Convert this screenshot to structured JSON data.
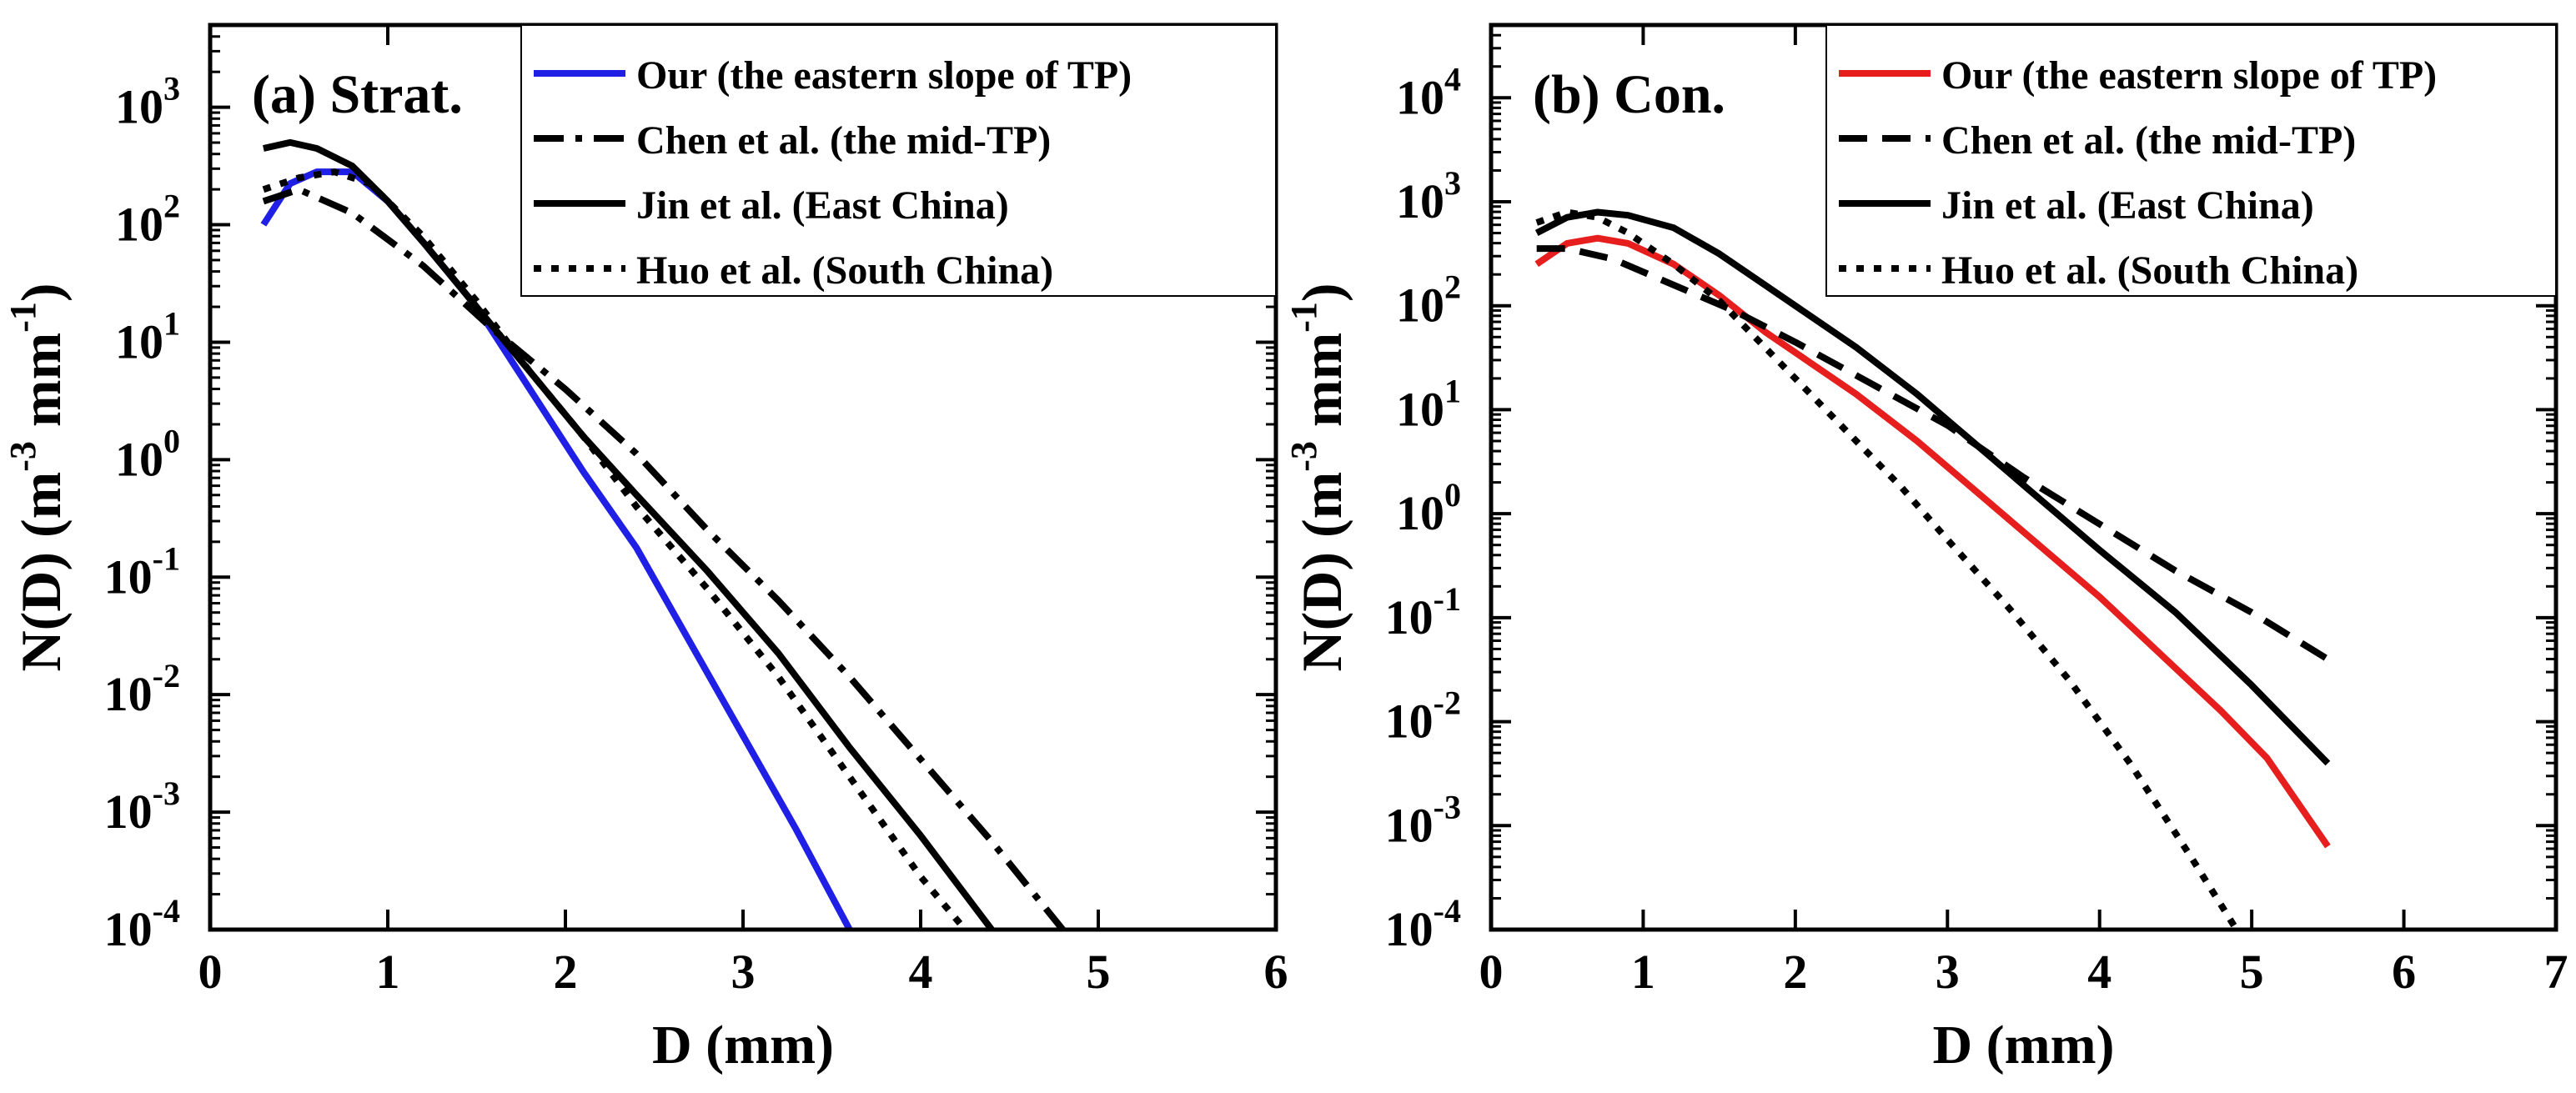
{
  "chart_data": [
    {
      "type": "line",
      "panel_label": "(a) Strat.",
      "xlabel": "D (mm)",
      "ylabel": "N(D) (m^-3 mm^-1)",
      "ylabel_parts": {
        "main": "N(D) (m",
        "exp1": "-3",
        "mid": " mm",
        "exp2": "-1",
        "end": ")"
      },
      "xlim": [
        0,
        6
      ],
      "ylim_log10": [
        -4,
        3.7
      ],
      "x_ticks": [
        "0",
        "1",
        "2",
        "3",
        "4",
        "5",
        "6"
      ],
      "y_ticks": [
        {
          "base": "10",
          "exp": "-4",
          "value": -4
        },
        {
          "base": "10",
          "exp": "-3",
          "value": -3
        },
        {
          "base": "10",
          "exp": "-2",
          "value": -2
        },
        {
          "base": "10",
          "exp": "-1",
          "value": -1
        },
        {
          "base": "10",
          "exp": "0",
          "value": 0
        },
        {
          "base": "10",
          "exp": "1",
          "value": 1
        },
        {
          "base": "10",
          "exp": "2",
          "value": 2
        },
        {
          "base": "10",
          "exp": "3",
          "value": 3
        }
      ],
      "legend_position": "top-right",
      "series": [
        {
          "name": "Our (the eastern slope of TP)",
          "color": "#1f1fe6",
          "dash": "solid",
          "x": [
            0.3,
            0.45,
            0.6,
            0.8,
            1.0,
            1.2,
            1.5,
            1.8,
            2.1,
            2.4,
            2.7,
            3.0,
            3.3,
            3.6
          ],
          "log10y": [
            2.0,
            2.35,
            2.45,
            2.45,
            2.2,
            1.85,
            1.3,
            0.6,
            -0.1,
            -0.75,
            -1.55,
            -2.35,
            -3.15,
            -4.0
          ]
        },
        {
          "name": "Chen et al. (the mid-TP)",
          "color": "#000000",
          "dash": "dashdot",
          "x": [
            0.3,
            0.5,
            0.8,
            1.2,
            1.6,
            2.0,
            2.4,
            2.8,
            3.2,
            3.6,
            4.0,
            4.4,
            4.8
          ],
          "log10y": [
            2.2,
            2.3,
            2.1,
            1.65,
            1.1,
            0.6,
            0.05,
            -0.6,
            -1.2,
            -1.85,
            -2.55,
            -3.25,
            -4.0
          ]
        },
        {
          "name": "Jin et al. (East China)",
          "color": "#000000",
          "dash": "solid",
          "x": [
            0.3,
            0.45,
            0.6,
            0.8,
            1.0,
            1.2,
            1.5,
            1.8,
            2.1,
            2.4,
            2.8,
            3.2,
            3.6,
            4.0,
            4.4
          ],
          "log10y": [
            2.65,
            2.7,
            2.65,
            2.5,
            2.2,
            1.85,
            1.3,
            0.75,
            0.2,
            -0.3,
            -0.95,
            -1.65,
            -2.45,
            -3.2,
            -4.0
          ]
        },
        {
          "name": "Huo et al. (South China)",
          "color": "#000000",
          "dash": "dot",
          "x": [
            0.3,
            0.5,
            0.7,
            0.9,
            1.2,
            1.5,
            1.8,
            2.1,
            2.4,
            2.8,
            3.2,
            3.6,
            4.0,
            4.25
          ],
          "log10y": [
            2.3,
            2.4,
            2.45,
            2.35,
            1.9,
            1.35,
            0.75,
            0.2,
            -0.4,
            -1.1,
            -1.85,
            -2.7,
            -3.55,
            -4.0
          ]
        }
      ]
    },
    {
      "type": "line",
      "panel_label": "(b) Con.",
      "xlabel": "D (mm)",
      "ylabel": "N(D) (m^-3 mm^-1)",
      "ylabel_parts": {
        "main": "N(D) (m",
        "exp1": "-3",
        "mid": " mm",
        "exp2": "-1",
        "end": ")"
      },
      "xlim": [
        0,
        7
      ],
      "ylim_log10": [
        -4,
        4.7
      ],
      "x_ticks": [
        "0",
        "1",
        "2",
        "3",
        "4",
        "5",
        "6",
        "7"
      ],
      "y_ticks": [
        {
          "base": "10",
          "exp": "-4",
          "value": -4
        },
        {
          "base": "10",
          "exp": "-3",
          "value": -3
        },
        {
          "base": "10",
          "exp": "-2",
          "value": -2
        },
        {
          "base": "10",
          "exp": "-1",
          "value": -1
        },
        {
          "base": "10",
          "exp": "0",
          "value": 0
        },
        {
          "base": "10",
          "exp": "1",
          "value": 1
        },
        {
          "base": "10",
          "exp": "2",
          "value": 2
        },
        {
          "base": "10",
          "exp": "3",
          "value": 3
        },
        {
          "base": "10",
          "exp": "4",
          "value": 4
        }
      ],
      "legend_position": "top-right",
      "series": [
        {
          "name": "Our (the eastern slope of TP)",
          "color": "#e61e1e",
          "dash": "solid",
          "x": [
            0.3,
            0.5,
            0.7,
            0.9,
            1.2,
            1.5,
            1.8,
            2.1,
            2.4,
            2.8,
            3.2,
            3.6,
            4.0,
            4.4,
            4.8,
            5.1,
            5.5
          ],
          "log10y": [
            2.4,
            2.6,
            2.65,
            2.6,
            2.4,
            2.1,
            1.75,
            1.45,
            1.15,
            0.7,
            0.2,
            -0.3,
            -0.8,
            -1.35,
            -1.9,
            -2.35,
            -3.2
          ]
        },
        {
          "name": "Chen et al. (the mid-TP)",
          "color": "#000000",
          "dash": "dash",
          "x": [
            0.3,
            0.5,
            0.8,
            1.2,
            1.6,
            2.0,
            2.5,
            3.0,
            3.5,
            4.0,
            4.5,
            5.0,
            5.5
          ],
          "log10y": [
            2.55,
            2.55,
            2.45,
            2.2,
            1.95,
            1.65,
            1.25,
            0.85,
            0.35,
            -0.1,
            -0.55,
            -0.95,
            -1.4
          ]
        },
        {
          "name": "Jin et al. (East China)",
          "color": "#000000",
          "dash": "solid",
          "x": [
            0.3,
            0.5,
            0.7,
            0.9,
            1.2,
            1.5,
            1.8,
            2.1,
            2.4,
            2.8,
            3.2,
            3.6,
            4.0,
            4.5,
            5.0,
            5.5
          ],
          "log10y": [
            2.7,
            2.85,
            2.9,
            2.87,
            2.75,
            2.5,
            2.2,
            1.9,
            1.6,
            1.15,
            0.65,
            0.15,
            -0.35,
            -0.95,
            -1.65,
            -2.4
          ]
        },
        {
          "name": "Huo et al. (South China)",
          "color": "#000000",
          "dash": "dot",
          "x": [
            0.3,
            0.5,
            0.7,
            0.9,
            1.2,
            1.5,
            1.8,
            2.1,
            2.4,
            2.7,
            3.0,
            3.4,
            3.8,
            4.2,
            4.6,
            4.9
          ],
          "log10y": [
            2.8,
            2.9,
            2.85,
            2.7,
            2.4,
            2.05,
            1.6,
            1.15,
            0.7,
            0.25,
            -0.25,
            -0.9,
            -1.6,
            -2.4,
            -3.3,
            -4.0
          ]
        }
      ]
    }
  ]
}
